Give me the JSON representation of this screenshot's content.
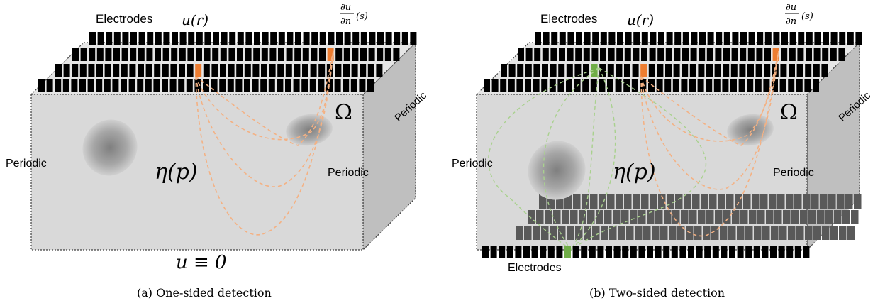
{
  "panels": [
    {
      "electrodes_label": "Electrodes",
      "u_r_label": "u(r)",
      "du_num": "∂u",
      "du_den": "∂n",
      "du_arg": "(s)",
      "left_label": "Periodic",
      "right_label": "Periodic",
      "side_label": "Periodic",
      "omega_label": "Ω",
      "eta_label": "η(p)",
      "bottom_label": "u ≡ 0",
      "caption": "(a) One-sided detection"
    },
    {
      "electrodes_label": "Electrodes",
      "u_r_label": "u(r)",
      "du_num": "∂u",
      "du_den": "∂n",
      "du_arg": "(s)",
      "left_label": "Periodic",
      "right_label": "Periodic",
      "side_label": "Periodic",
      "omega_label": "Ω",
      "eta_label": "η(p)",
      "bottom_electrodes_label": "Electrodes",
      "caption": "(b) Two-sided detection"
    }
  ],
  "colors": {
    "electrode": "#000000",
    "receiver": "#ED7D31",
    "source": "#70AD47",
    "box_front": "#D9D9D9",
    "box_side": "#BFBFBF",
    "bottom_electrode_back": "#595959",
    "orange_path": "#F4B183",
    "green_path": "#A9D18E"
  }
}
